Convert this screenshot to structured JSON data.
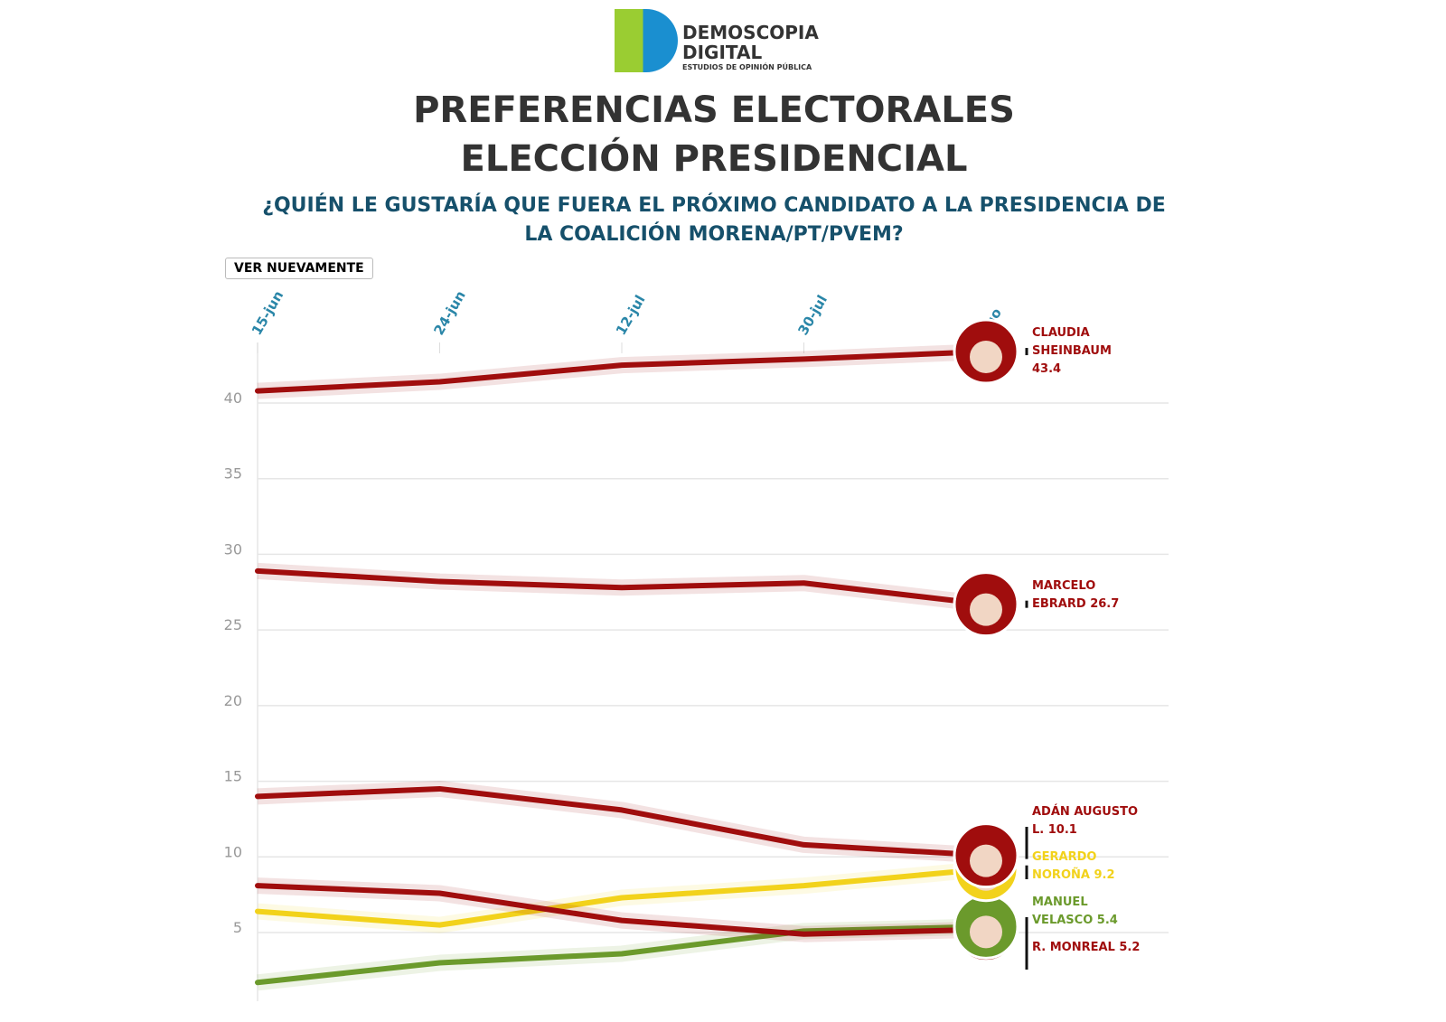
{
  "logo": {
    "line1": "DEMOSCOPIA",
    "line2": "DIGITAL",
    "tagline": "ESTUDIOS DE OPINIÓN PÚBLICA"
  },
  "button": "VER NUEVAMENTE",
  "chart_data": {
    "type": "line",
    "title": "PREFERENCIAS ELECTORALES ELECCIÓN PRESIDENCIAL",
    "subtitle": "¿QUIÉN LE GUSTARÍA QUE FUERA EL PRÓXIMO CANDIDATO A LA PRESIDENCIA DE LA COALICIÓN MORENA/PT/PVEM?",
    "categories": [
      "15-jun",
      "24-jun",
      "12-jul",
      "30-jul",
      "ago"
    ],
    "ylim": [
      1,
      44
    ],
    "yticks": [
      5,
      10,
      15,
      20,
      25,
      30,
      35,
      40
    ],
    "grid": true,
    "series": [
      {
        "name": "CLAUDIA SHEINBAUM",
        "color": "#a00d0d",
        "values": [
          40.8,
          41.4,
          42.5,
          42.9,
          43.4
        ]
      },
      {
        "name": "MARCELO EBRARD",
        "color": "#a00d0d",
        "values": [
          28.9,
          28.2,
          27.8,
          28.1,
          26.7
        ]
      },
      {
        "name": "ADÁN AUGUSTO L.",
        "color": "#a00d0d",
        "values": [
          14.0,
          14.5,
          13.1,
          10.8,
          10.1
        ]
      },
      {
        "name": "GERARDO NOROÑA",
        "color": "#f2d21b",
        "values": [
          6.4,
          5.5,
          7.3,
          8.1,
          9.2
        ]
      },
      {
        "name": "MANUEL VELASCO",
        "color": "#6b9a2c",
        "values": [
          1.7,
          3.0,
          3.6,
          5.1,
          5.4
        ]
      },
      {
        "name": "R. MONREAL",
        "color": "#a00d0d",
        "values": [
          8.1,
          7.6,
          5.8,
          4.9,
          5.2
        ]
      }
    ]
  }
}
